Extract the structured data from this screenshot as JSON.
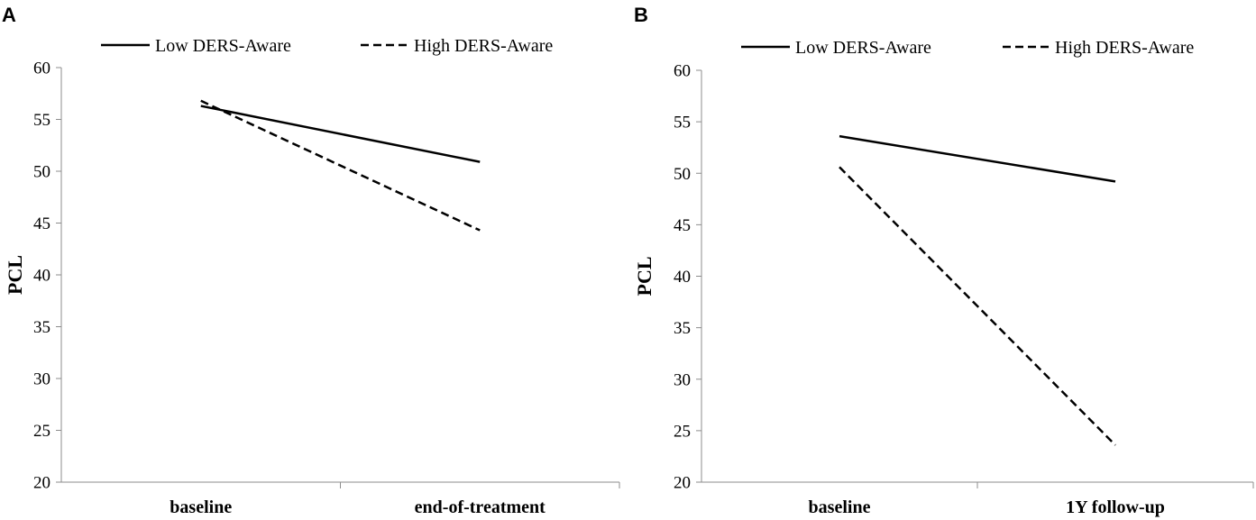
{
  "chart_data": [
    {
      "panel_label": "A",
      "type": "line",
      "ylabel": "PCL",
      "xlabel": "",
      "ylim": [
        20,
        60
      ],
      "yticks": [
        "20",
        "25",
        "30",
        "35",
        "40",
        "45",
        "50",
        "55",
        "60"
      ],
      "categories": [
        "baseline",
        "end-of-treatment"
      ],
      "legend_position": "top",
      "series": [
        {
          "name": "Low DERS-Aware",
          "style": "solid",
          "values": [
            56.3,
            50.9
          ]
        },
        {
          "name": "High DERS-Aware",
          "style": "dashed",
          "values": [
            56.8,
            44.3
          ]
        }
      ]
    },
    {
      "panel_label": "B",
      "type": "line",
      "ylabel": "PCL",
      "xlabel": "",
      "ylim": [
        20,
        60
      ],
      "yticks": [
        "20",
        "25",
        "30",
        "35",
        "40",
        "45",
        "50",
        "55",
        "60"
      ],
      "categories": [
        "baseline",
        "1Y follow-up"
      ],
      "legend_position": "top",
      "series": [
        {
          "name": "Low DERS-Aware",
          "style": "solid",
          "values": [
            53.6,
            49.2
          ]
        },
        {
          "name": "High DERS-Aware",
          "style": "dashed",
          "values": [
            50.6,
            23.6
          ]
        }
      ]
    }
  ]
}
